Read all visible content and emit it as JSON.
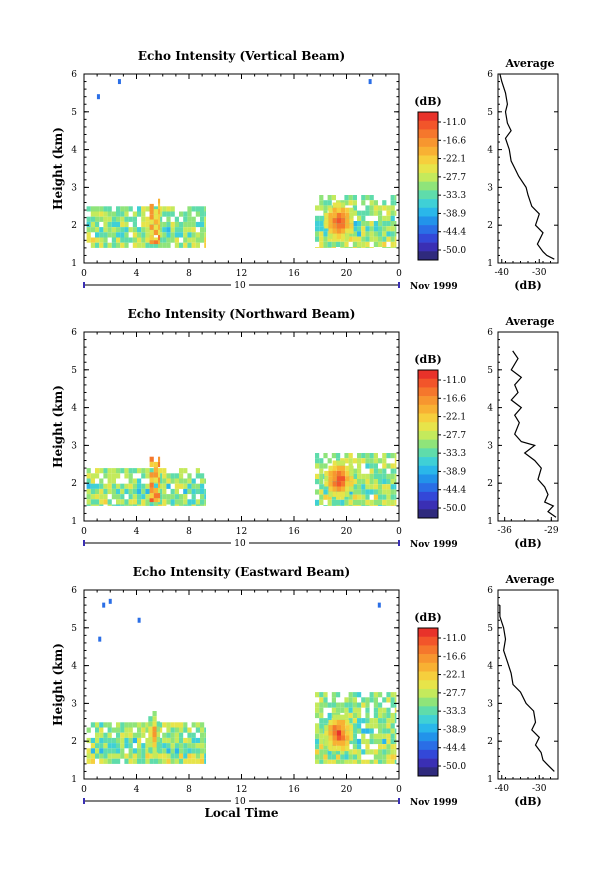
{
  "chart_data": [
    {
      "type": "heatmap",
      "title": "Echo Intensity (Vertical Beam)",
      "ylabel": "Height (km)",
      "xlabel": "",
      "xlim": [
        0,
        24
      ],
      "ylim": [
        1,
        6
      ],
      "xticks": [
        "0",
        "4",
        "8",
        "12",
        "16",
        "20",
        "0"
      ],
      "yticks": [
        "1",
        "2",
        "3",
        "4",
        "5",
        "6"
      ],
      "date_bar_label": "10",
      "date_label": "Nov 1999",
      "colorbar": {
        "unit": "(dB)",
        "labels": [
          "-11.0",
          "-16.6",
          "-22.1",
          "-27.7",
          "-33.3",
          "-38.9",
          "-44.4",
          "-50.0"
        ],
        "colors": [
          "#e8322a",
          "#f2552a",
          "#f5772c",
          "#f7962f",
          "#f8b133",
          "#f6cf3d",
          "#e7e44a",
          "#c4ea5c",
          "#8fe47a",
          "#5fdcab",
          "#3fd0d6",
          "#2ab7ea",
          "#2293ea",
          "#2a6ee6",
          "#3348d8",
          "#3a2fb4",
          "#2f2a7d"
        ]
      },
      "regions": [
        {
          "x0": 0.2,
          "x1": 9.3,
          "y0": 1.4,
          "y1": 2.5,
          "level": "-33.3"
        },
        {
          "x0": 5.0,
          "x1": 5.8,
          "y0": 1.5,
          "y1": 2.7,
          "level": "-22.1"
        },
        {
          "x0": 17.6,
          "x1": 23.8,
          "y0": 1.4,
          "y1": 2.8,
          "level": "-33.3"
        },
        {
          "x0": 18.3,
          "x1": 20.6,
          "y0": 1.6,
          "y1": 2.6,
          "level": "-11.0"
        }
      ],
      "isolated_echoes": [
        {
          "x": 1.1,
          "y": 5.4
        },
        {
          "x": 2.7,
          "y": 5.8
        },
        {
          "x": 21.8,
          "y": 5.8
        }
      ],
      "average_profile": {
        "title": "Average",
        "xlabel": "(dB)",
        "xticks": [
          "-40",
          "-30"
        ],
        "xlim": [
          -41,
          -25
        ],
        "ylim": [
          1,
          6
        ],
        "points": [
          [
            -40.5,
            6.0
          ],
          [
            -40,
            5.8
          ],
          [
            -39,
            5.5
          ],
          [
            -38.5,
            5.2
          ],
          [
            -39,
            5.0
          ],
          [
            -38.5,
            4.7
          ],
          [
            -37.5,
            4.5
          ],
          [
            -39,
            4.3
          ],
          [
            -38,
            4.0
          ],
          [
            -37.5,
            3.7
          ],
          [
            -36.5,
            3.5
          ],
          [
            -35.5,
            3.3
          ],
          [
            -33.5,
            3.0
          ],
          [
            -33,
            2.8
          ],
          [
            -32,
            2.5
          ],
          [
            -30,
            2.3
          ],
          [
            -31,
            2.0
          ],
          [
            -29,
            1.8
          ],
          [
            -30.5,
            1.5
          ],
          [
            -29,
            1.3
          ],
          [
            -28,
            1.2
          ],
          [
            -26,
            1.1
          ]
        ]
      }
    },
    {
      "type": "heatmap",
      "title": "Echo Intensity (Northward Beam)",
      "ylabel": "Height (km)",
      "xlabel": "",
      "xlim": [
        0,
        24
      ],
      "ylim": [
        1,
        6
      ],
      "xticks": [
        "0",
        "4",
        "8",
        "12",
        "16",
        "20",
        "0"
      ],
      "yticks": [
        "1",
        "2",
        "3",
        "4",
        "5",
        "6"
      ],
      "date_bar_label": "10",
      "date_label": "Nov 1999",
      "colorbar": {
        "unit": "(dB)",
        "labels": [
          "-11.0",
          "-16.6",
          "-22.1",
          "-27.7",
          "-33.3",
          "-38.9",
          "-44.4",
          "-50.0"
        ],
        "colors": [
          "#e8322a",
          "#f2552a",
          "#f5772c",
          "#f7962f",
          "#f8b133",
          "#f6cf3d",
          "#e7e44a",
          "#c4ea5c",
          "#8fe47a",
          "#5fdcab",
          "#3fd0d6",
          "#2ab7ea",
          "#2293ea",
          "#2a6ee6",
          "#3348d8",
          "#3a2fb4",
          "#2f2a7d"
        ]
      },
      "regions": [
        {
          "x0": 0.2,
          "x1": 9.3,
          "y0": 1.4,
          "y1": 2.4,
          "level": "-33.3"
        },
        {
          "x0": 5.0,
          "x1": 5.8,
          "y0": 1.5,
          "y1": 2.7,
          "level": "-22.1"
        },
        {
          "x0": 17.6,
          "x1": 23.8,
          "y0": 1.4,
          "y1": 2.8,
          "level": "-33.3"
        },
        {
          "x0": 18.3,
          "x1": 20.6,
          "y0": 1.6,
          "y1": 2.6,
          "level": "-11.0"
        }
      ],
      "isolated_echoes": [],
      "average_profile": {
        "title": "Average",
        "xlabel": "(dB)",
        "xticks": [
          "-36",
          "-29"
        ],
        "xlim": [
          -37,
          -28
        ],
        "ylim": [
          1,
          6
        ],
        "points": [
          [
            -34.8,
            5.5
          ],
          [
            -34,
            5.3
          ],
          [
            -35,
            5.0
          ],
          [
            -33.5,
            4.8
          ],
          [
            -34.5,
            4.6
          ],
          [
            -34,
            4.4
          ],
          [
            -35,
            4.2
          ],
          [
            -33.5,
            4.0
          ],
          [
            -34.5,
            3.8
          ],
          [
            -33.8,
            3.6
          ],
          [
            -34.5,
            3.3
          ],
          [
            -33.5,
            3.1
          ],
          [
            -31.5,
            3.0
          ],
          [
            -33,
            2.8
          ],
          [
            -31.5,
            2.6
          ],
          [
            -30.5,
            2.4
          ],
          [
            -31,
            2.1
          ],
          [
            -30,
            1.9
          ],
          [
            -29.5,
            1.7
          ],
          [
            -30,
            1.5
          ],
          [
            -28.7,
            1.4
          ],
          [
            -29.5,
            1.25
          ],
          [
            -28.3,
            1.1
          ]
        ]
      }
    },
    {
      "type": "heatmap",
      "title": "Echo Intensity (Eastward Beam)",
      "ylabel": "Height (km)",
      "xlabel": "Local Time",
      "xlim": [
        0,
        24
      ],
      "ylim": [
        1,
        6
      ],
      "xticks": [
        "0",
        "4",
        "8",
        "12",
        "16",
        "20",
        "0"
      ],
      "yticks": [
        "1",
        "2",
        "3",
        "4",
        "5",
        "6"
      ],
      "date_bar_label": "10",
      "date_label": "Nov 1999",
      "colorbar": {
        "unit": "(dB)",
        "labels": [
          "-11.0",
          "-16.6",
          "-22.1",
          "-27.7",
          "-33.3",
          "-38.9",
          "-44.4",
          "-50.0"
        ],
        "colors": [
          "#e8322a",
          "#f2552a",
          "#f5772c",
          "#f7962f",
          "#f8b133",
          "#f6cf3d",
          "#e7e44a",
          "#c4ea5c",
          "#8fe47a",
          "#5fdcab",
          "#3fd0d6",
          "#2ab7ea",
          "#2293ea",
          "#2a6ee6",
          "#3348d8",
          "#3a2fb4",
          "#2f2a7d"
        ]
      },
      "regions": [
        {
          "x0": 0.2,
          "x1": 9.3,
          "y0": 1.4,
          "y1": 2.5,
          "level": "-33.3"
        },
        {
          "x0": 4.9,
          "x1": 5.8,
          "y0": 1.5,
          "y1": 2.8,
          "level": "-16.6"
        },
        {
          "x0": 17.6,
          "x1": 23.8,
          "y0": 1.4,
          "y1": 3.3,
          "level": "-33.3"
        },
        {
          "x0": 18.3,
          "x1": 20.5,
          "y0": 1.7,
          "y1": 2.7,
          "level": "-11.0"
        }
      ],
      "isolated_echoes": [
        {
          "x": 1.5,
          "y": 5.6
        },
        {
          "x": 2.0,
          "y": 5.7
        },
        {
          "x": 1.2,
          "y": 4.7
        },
        {
          "x": 4.2,
          "y": 5.2
        },
        {
          "x": 22.5,
          "y": 5.6
        }
      ],
      "average_profile": {
        "title": "Average",
        "xlabel": "(dB)",
        "xticks": [
          "-40",
          "-30"
        ],
        "xlim": [
          -41,
          -25
        ],
        "ylim": [
          1,
          6
        ],
        "points": [
          [
            -40.5,
            5.6
          ],
          [
            -40.5,
            5.3
          ],
          [
            -39.5,
            5.0
          ],
          [
            -39,
            4.7
          ],
          [
            -39.5,
            4.4
          ],
          [
            -38.5,
            4.1
          ],
          [
            -37.5,
            3.8
          ],
          [
            -37,
            3.5
          ],
          [
            -35,
            3.3
          ],
          [
            -33.5,
            3.0
          ],
          [
            -31.5,
            2.8
          ],
          [
            -31,
            2.5
          ],
          [
            -32,
            2.3
          ],
          [
            -30,
            2.1
          ],
          [
            -31,
            1.9
          ],
          [
            -29.5,
            1.7
          ],
          [
            -29,
            1.5
          ],
          [
            -27.5,
            1.35
          ],
          [
            -26,
            1.2
          ]
        ]
      }
    }
  ]
}
